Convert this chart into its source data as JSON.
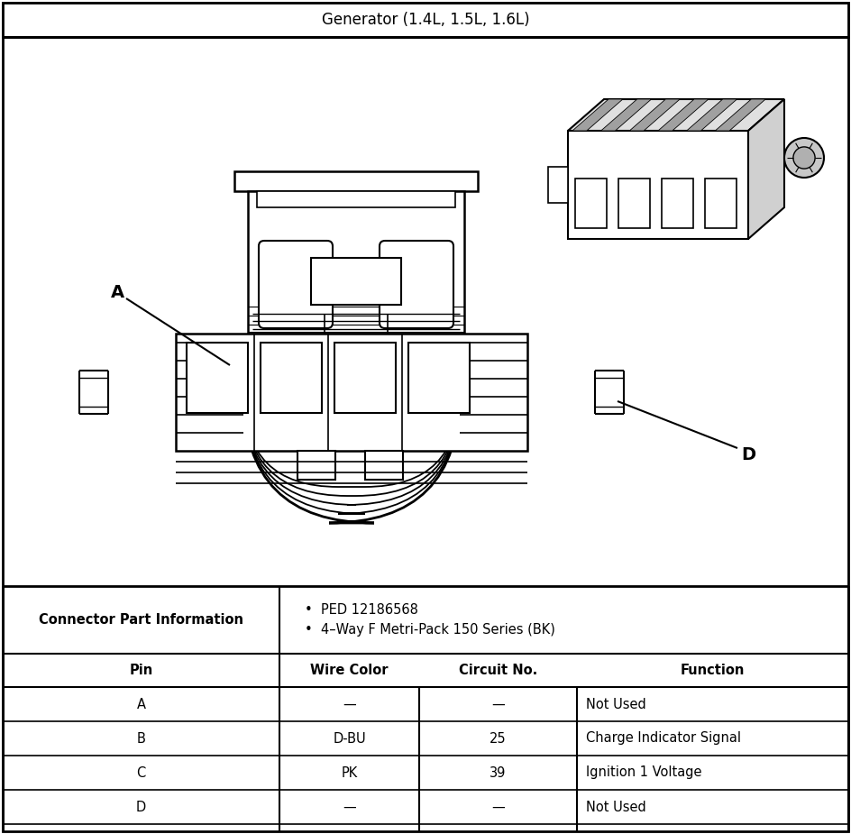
{
  "title": "Generator (1.4L, 1.5L, 1.6L)",
  "background_color": "#ffffff",
  "connector_info_label": "Connector Part Information",
  "connector_bullets": [
    "PED 12186568",
    "4–Way F Metri-Pack 150 Series (BK)"
  ],
  "table_headers": [
    "Pin",
    "Wire Color",
    "Circuit No.",
    "Function"
  ],
  "table_rows": [
    [
      "A",
      "—",
      "—",
      "Not Used"
    ],
    [
      "B",
      "D-BU",
      "25",
      "Charge Indicator Signal"
    ],
    [
      "C",
      "PK",
      "39",
      "Ignition 1 Voltage"
    ],
    [
      "D",
      "—",
      "—",
      "Not Used"
    ]
  ],
  "label_A": "A",
  "label_D": "D",
  "title_fontsize": 12,
  "table_fontsize": 10.5
}
